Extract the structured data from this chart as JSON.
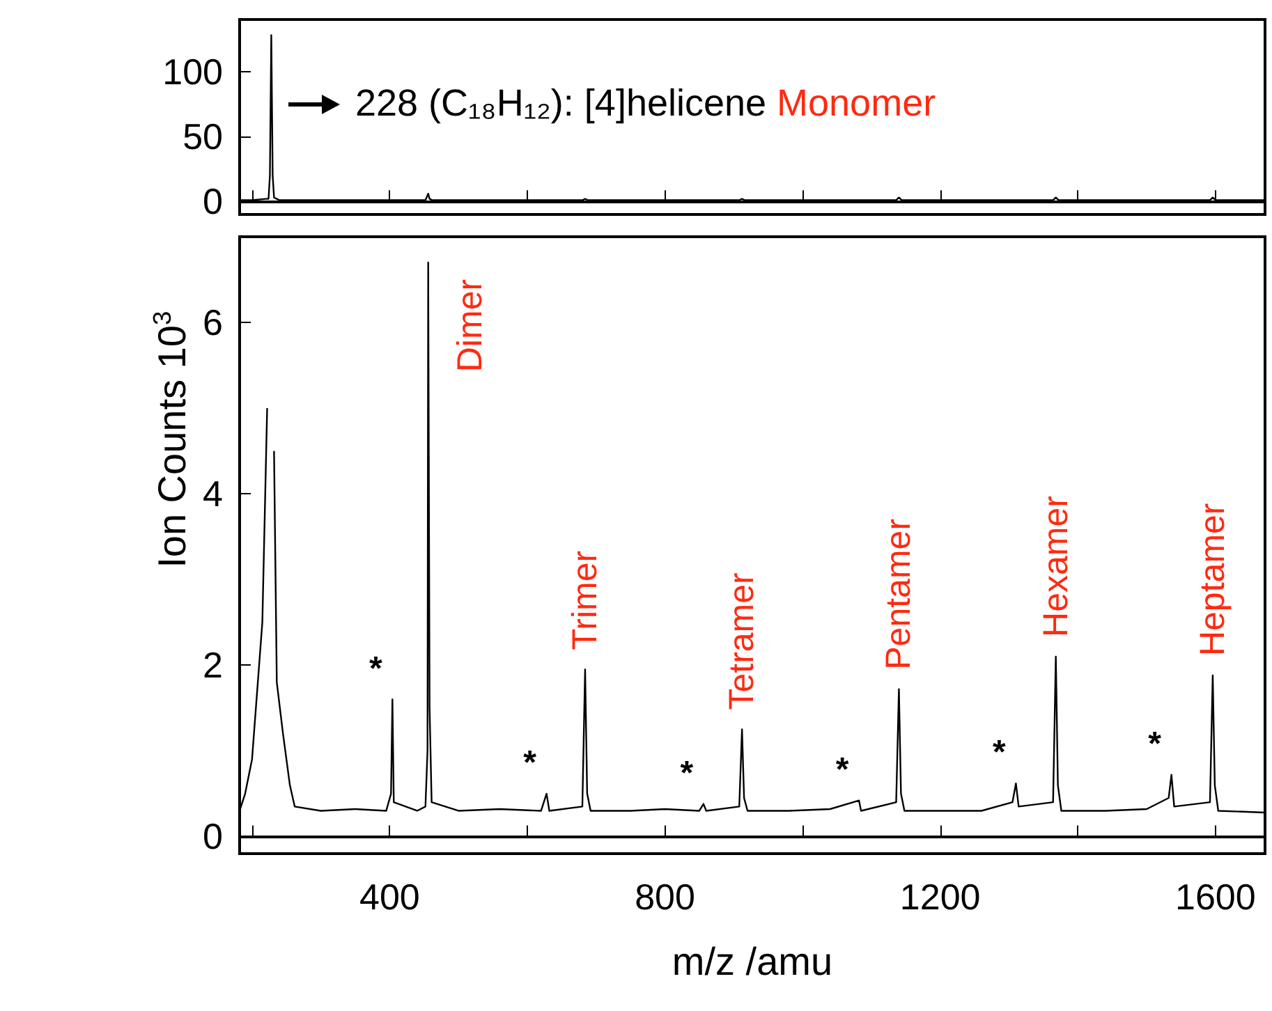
{
  "chart_data": [
    {
      "type": "line",
      "color": "#000000",
      "xlim": [
        182,
        1672
      ],
      "ylim": [
        -10,
        140
      ],
      "yticks": [
        0,
        50,
        100
      ],
      "xticks": [
        {
          "value": 200,
          "label": null
        },
        400,
        {
          "value": 600,
          "label": null
        },
        800,
        {
          "value": 1000,
          "label": null
        },
        1200,
        {
          "value": 1400,
          "label": null
        },
        1600
      ],
      "tick_labels": "y",
      "x": [
        182,
        200,
        220,
        224,
        226,
        228,
        230,
        232,
        236,
        240,
        300,
        400,
        452,
        456,
        458,
        462,
        600,
        680,
        684,
        688,
        800,
        908,
        912,
        916,
        1100,
        1136,
        1140,
        1144,
        1300,
        1364,
        1368,
        1372,
        1500,
        1592,
        1596,
        1600,
        1672
      ],
      "values": [
        1,
        1,
        2,
        2,
        20,
        128,
        20,
        3,
        2,
        1,
        1,
        1,
        1,
        6,
        2,
        1,
        1,
        1,
        2,
        1,
        1,
        1,
        2,
        1,
        1,
        1,
        3,
        1,
        1,
        1,
        3,
        1,
        1,
        1,
        3,
        1,
        1
      ],
      "annotations": [
        "228 (C₁₈H₁₂): [4]helicene",
        "Monomer"
      ]
    },
    {
      "type": "line",
      "color": "#000000",
      "xlim": [
        182,
        1672
      ],
      "ylim": [
        -0.2,
        7
      ],
      "yticks": [
        0,
        2,
        4,
        6
      ],
      "xticks": [
        {
          "value": 200,
          "label": null
        },
        400,
        {
          "value": 600,
          "label": null
        },
        800,
        {
          "value": 1000,
          "label": null
        },
        1200,
        {
          "value": 1400,
          "label": null
        },
        1600
      ],
      "xlabel": "m/z /amu",
      "ylabel": "Ion Counts 10$^{3}$",
      "x": [
        182,
        190,
        200,
        215,
        222,
        226,
        228,
        232,
        236,
        245,
        255,
        262,
        300,
        350,
        395,
        402,
        404,
        406,
        440,
        452,
        455,
        456,
        458,
        461,
        500,
        560,
        620,
        628,
        632,
        680,
        684,
        687,
        692,
        750,
        800,
        850,
        856,
        860,
        908,
        912,
        915,
        920,
        980,
        1040,
        1082,
        1085,
        1136,
        1140,
        1143,
        1148,
        1200,
        1260,
        1305,
        1310,
        1314,
        1364,
        1368,
        1371,
        1376,
        1440,
        1500,
        1532,
        1536,
        1540,
        1592,
        1596,
        1599,
        1604,
        1672
      ],
      "values": [
        0.3,
        0.5,
        0.9,
        2.5,
        5,
        null,
        null,
        4.5,
        1.8,
        1.2,
        0.6,
        0.35,
        0.3,
        0.32,
        0.3,
        0.5,
        1.6,
        0.4,
        0.3,
        0.35,
        1,
        6.7,
        1.5,
        0.4,
        0.3,
        0.32,
        0.3,
        0.5,
        0.3,
        0.35,
        1.95,
        0.5,
        0.3,
        0.3,
        0.32,
        0.3,
        0.38,
        0.3,
        0.35,
        1.25,
        0.45,
        0.3,
        0.3,
        0.32,
        0.42,
        0.3,
        0.4,
        1.72,
        0.5,
        0.3,
        0.3,
        0.3,
        0.4,
        0.62,
        0.35,
        0.4,
        2.1,
        0.6,
        0.3,
        0.3,
        0.32,
        0.45,
        0.72,
        0.35,
        0.4,
        1.88,
        0.6,
        0.3,
        0.28
      ],
      "annotations": [
        {
          "text": "Dimer",
          "x": 456,
          "y": 6.7
        },
        {
          "text": "Trimer",
          "x": 684,
          "y": 1.95
        },
        {
          "text": "Tetramer",
          "x": 912,
          "y": 1.25
        },
        {
          "text": "Pentamer",
          "x": 1140,
          "y": 1.72
        },
        {
          "text": "Hexamer",
          "x": 1368,
          "y": 2.1
        },
        {
          "text": "Heptamer",
          "x": 1596,
          "y": 1.88
        },
        {
          "text": "*",
          "x": 404,
          "y": 1.6
        },
        {
          "text": "*",
          "x": 628,
          "y": 0.5
        },
        {
          "text": "*",
          "x": 856,
          "y": 0.38
        },
        {
          "text": "*",
          "x": 1082,
          "y": 0.42
        },
        {
          "text": "*",
          "x": 1310,
          "y": 0.62
        },
        {
          "text": "*",
          "x": 1536,
          "y": 0.72
        }
      ]
    }
  ]
}
